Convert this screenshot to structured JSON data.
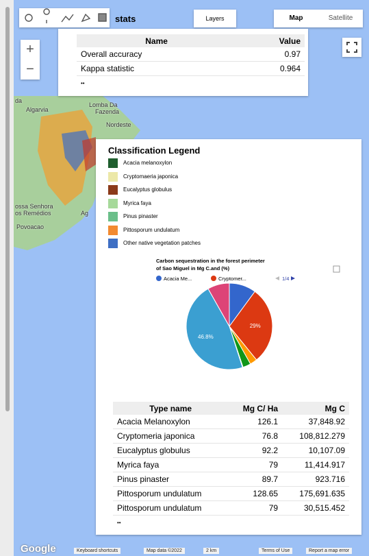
{
  "toolbar": {
    "title": "stats",
    "layers": "Layers",
    "map_types": [
      "Map",
      "Satellite"
    ]
  },
  "zoom": [
    "+",
    "−"
  ],
  "stats_table": {
    "headers": [
      "Name",
      "Value"
    ],
    "rows": [
      [
        "Overall accuracy",
        "0.97"
      ],
      [
        "Kappa statistic",
        "0.964"
      ]
    ],
    "more": "••"
  },
  "place_labels": [
    "da",
    "Algarvia",
    "Lomba Da",
    "Fazenda",
    "Nordeste",
    "ossa Senhora",
    "os Remédios",
    "Ag",
    "Povoacao"
  ],
  "legend": {
    "title": "Classification Legend",
    "items": [
      {
        "label": "Acacia melanoxylon",
        "color": "#1f5e2e"
      },
      {
        "label": "Cryptomaeria japonica",
        "color": "#ece8a8"
      },
      {
        "label": "Eucalyptus globulus",
        "color": "#8b3a1a"
      },
      {
        "label": "Myrica faya",
        "color": "#a6d99a"
      },
      {
        "label": "Pinus pinaster",
        "color": "#6bbf8a"
      },
      {
        "label": "Pittosporum undulatum",
        "color": "#f28a30"
      },
      {
        "label": "Other native vegetation patches",
        "color": "#3e6fc4"
      }
    ]
  },
  "pie": {
    "type": "pie",
    "title": [
      "Carbon sequestration in the forest perimeter",
      "of Sao Miguel in Mg C.and (%)"
    ],
    "legend": [
      "Acacia Me...",
      "Cryptomer..."
    ],
    "pager": "1/4",
    "values": [
      10.1,
      29.1,
      2.7,
      3.0,
      0.2,
      46.8,
      8.2
    ],
    "value_labels": [
      null,
      "29%",
      null,
      null,
      null,
      "46.8%",
      null
    ],
    "colors": [
      "#3366cc",
      "#dc3912",
      "#ff9900",
      "#109618",
      "#990099",
      "#3b9fd1",
      "#dd4477"
    ]
  },
  "type_table": {
    "headers": [
      "Type name",
      "Mg C/ Ha",
      "Mg C"
    ],
    "rows": [
      [
        "Acacia Melanoxylon",
        "126.1",
        "37,848.92"
      ],
      [
        "Cryptomeria japonica",
        "76.8",
        "108,812.279"
      ],
      [
        "Eucalyptus globulus",
        "92.2",
        "10,107.09"
      ],
      [
        "Myrica faya",
        "79",
        "11,414.917"
      ],
      [
        "Pinus pinaster",
        "89.7",
        "923.716"
      ],
      [
        "Pittosporum undulatum",
        "128.65",
        "175,691.635"
      ],
      [
        "Pittosporum undulatum",
        "79",
        "30,515.452"
      ]
    ],
    "more": "••"
  },
  "footer": [
    "Google",
    "Keyboard shortcuts",
    "Map data ©2022",
    "2 km",
    "Terms of Use",
    "Report a map error"
  ]
}
